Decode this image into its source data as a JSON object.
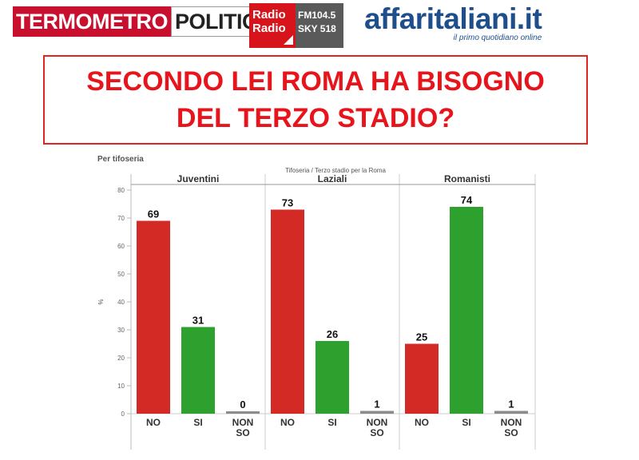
{
  "header": {
    "logo_left_part1": "TERMOMETRO",
    "logo_left_part2": "POLITICO",
    "logo_radio_line1": "Radio",
    "logo_radio_line2": "Radio",
    "logo_radio_freq1": "FM104.5",
    "logo_radio_freq2": "SKY 518",
    "logo_right_name": "affaritaliani.it",
    "logo_right_tagline": "il primo quotidiano online"
  },
  "question": "SECONDO LEI ROMA HA BISOGNO DEL TERZO STADIO?",
  "chart_data": {
    "type": "bar",
    "title": "Per tifoseria",
    "subtitle": "Tifoseria / Terzo stadio per la Roma",
    "ylabel": "%",
    "ylim": [
      0,
      80
    ],
    "yticks": [
      0,
      10,
      20,
      30,
      40,
      50,
      60,
      70,
      80
    ],
    "grid": false,
    "categories": [
      "NO",
      "SI",
      "NON SO"
    ],
    "colors": {
      "NO": "#d42a26",
      "SI": "#2ea02e",
      "NON SO": "#8c8c8c"
    },
    "panels": [
      {
        "name": "Juventini",
        "values": [
          69,
          31,
          0
        ]
      },
      {
        "name": "Laziali",
        "values": [
          73,
          26,
          1
        ]
      },
      {
        "name": "Romanisti",
        "values": [
          25,
          74,
          1
        ]
      }
    ]
  }
}
